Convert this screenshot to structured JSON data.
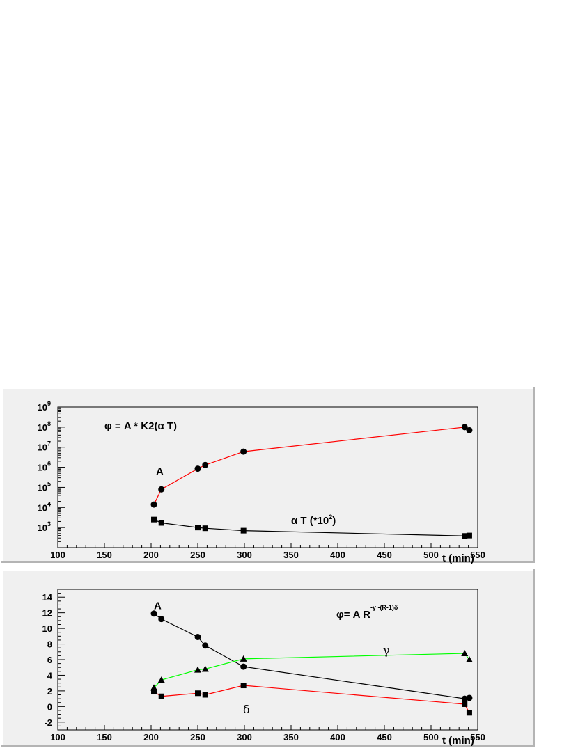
{
  "chart_data": [
    {
      "type": "line",
      "scale_y": "log",
      "xlim": [
        100,
        550
      ],
      "ylim_exp": [
        2,
        9
      ],
      "xticks": [
        100,
        150,
        200,
        250,
        300,
        350,
        400,
        450,
        500,
        550
      ],
      "yticks_exp": [
        3,
        4,
        5,
        6,
        7,
        8,
        9
      ],
      "xlabel": "t (min)",
      "formula": "φ = A * K2(α T)",
      "annotations": [
        {
          "text": "A",
          "x": 203,
          "yexp": 5.8
        },
        {
          "text": "α T (*10",
          "sup": "2",
          "close": ")",
          "x": 350,
          "yexp": 3.35
        }
      ],
      "series": [
        {
          "label": "A",
          "color": "#ff0000",
          "marker": "circle",
          "x": [
            203,
            211,
            250,
            258,
            299,
            536,
            541
          ],
          "y": [
            14000,
            80000,
            850000,
            1300000,
            6000000,
            100000000,
            70000000
          ]
        },
        {
          "label": "α T",
          "color": "#000000",
          "marker": "square",
          "x": [
            203,
            211,
            250,
            258,
            299,
            536,
            541
          ],
          "y": [
            2500,
            1700,
            1000,
            920,
            700,
            380,
            400
          ]
        }
      ]
    },
    {
      "type": "line",
      "xlim": [
        100,
        550
      ],
      "ylim": [
        -3,
        15
      ],
      "xticks": [
        100,
        150,
        200,
        250,
        300,
        350,
        400,
        450,
        500,
        550
      ],
      "yticks": [
        -2,
        0,
        2,
        4,
        6,
        8,
        10,
        12,
        14
      ],
      "xlabel": "t (min)",
      "formula_base": "φ= A R",
      "formula_sup": "-γ -(R-1)δ",
      "annotations": [
        {
          "text": "A",
          "x": 203,
          "y": 12.9
        },
        {
          "text": "γ",
          "x": 450,
          "y": 7.1
        },
        {
          "text": "δ",
          "x": 300,
          "y": -0.4
        }
      ],
      "series": [
        {
          "label": "A",
          "color": "#000000",
          "marker": "circle",
          "x": [
            203,
            211,
            250,
            258,
            299,
            536,
            541
          ],
          "y": [
            11.9,
            11.2,
            8.9,
            7.8,
            5.1,
            1.0,
            1.1
          ]
        },
        {
          "label": "γ",
          "color": "#00ff00",
          "marker": "triangle",
          "x": [
            203,
            211,
            250,
            258,
            299,
            536,
            541
          ],
          "y": [
            2.4,
            3.4,
            4.7,
            4.8,
            6.1,
            6.8,
            6.0
          ]
        },
        {
          "label": "δ",
          "color": "#ff0000",
          "marker": "square",
          "x": [
            203,
            211,
            250,
            258,
            299,
            536,
            541
          ],
          "y": [
            1.9,
            1.3,
            1.7,
            1.5,
            2.7,
            0.3,
            -0.8
          ]
        }
      ]
    }
  ]
}
